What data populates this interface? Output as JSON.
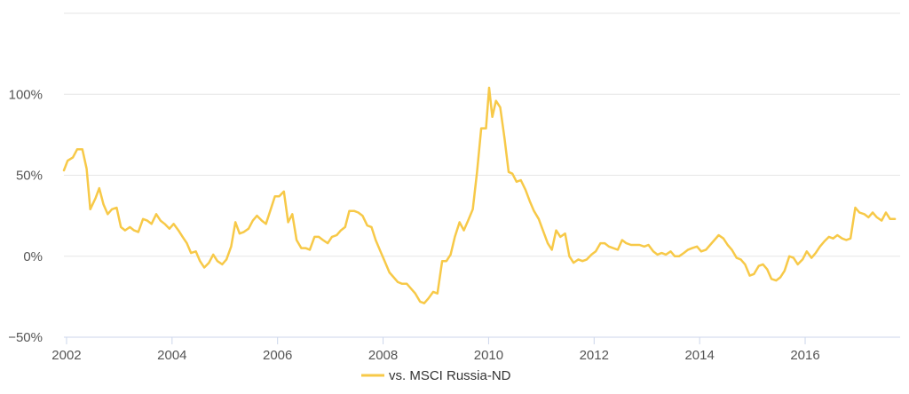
{
  "chart_data": {
    "type": "line",
    "title": "",
    "xlabel": "",
    "ylabel": "",
    "xlim": [
      2001.95,
      2017.8
    ],
    "ylim": [
      -50,
      150
    ],
    "x_ticks": [
      {
        "value": 2002,
        "label": "2002"
      },
      {
        "value": 2004,
        "label": "2004"
      },
      {
        "value": 2006,
        "label": "2006"
      },
      {
        "value": 2008,
        "label": "2008"
      },
      {
        "value": 2010,
        "label": "2010"
      },
      {
        "value": 2012,
        "label": "2012"
      },
      {
        "value": 2014,
        "label": "2014"
      },
      {
        "value": 2016,
        "label": "2016"
      }
    ],
    "y_ticks": [
      {
        "value": -50,
        "label": "−50%"
      },
      {
        "value": 0,
        "label": "0%"
      },
      {
        "value": 50,
        "label": "50%"
      },
      {
        "value": 100,
        "label": "100%"
      },
      {
        "value": 150,
        "label": ""
      }
    ],
    "grid": true,
    "legend_position": "bottom-center",
    "series": [
      {
        "name": "vs. MSCI Russia-ND",
        "color": "#f7c948",
        "points": [
          [
            2001.95,
            53
          ],
          [
            2002.02,
            59
          ],
          [
            2002.12,
            61
          ],
          [
            2002.2,
            66
          ],
          [
            2002.3,
            66
          ],
          [
            2002.38,
            54
          ],
          [
            2002.45,
            29
          ],
          [
            2002.55,
            36
          ],
          [
            2002.62,
            42
          ],
          [
            2002.7,
            32
          ],
          [
            2002.78,
            26
          ],
          [
            2002.86,
            29
          ],
          [
            2002.95,
            30
          ],
          [
            2003.03,
            18
          ],
          [
            2003.11,
            16
          ],
          [
            2003.2,
            18
          ],
          [
            2003.28,
            16
          ],
          [
            2003.36,
            15
          ],
          [
            2003.45,
            23
          ],
          [
            2003.53,
            22
          ],
          [
            2003.61,
            20
          ],
          [
            2003.7,
            26
          ],
          [
            2003.78,
            22
          ],
          [
            2003.86,
            20
          ],
          [
            2003.95,
            17
          ],
          [
            2004.03,
            20
          ],
          [
            2004.12,
            16
          ],
          [
            2004.2,
            12
          ],
          [
            2004.28,
            8
          ],
          [
            2004.36,
            2
          ],
          [
            2004.45,
            3
          ],
          [
            2004.53,
            -3
          ],
          [
            2004.61,
            -7
          ],
          [
            2004.7,
            -4
          ],
          [
            2004.78,
            1
          ],
          [
            2004.86,
            -3
          ],
          [
            2004.95,
            -5
          ],
          [
            2005.03,
            -2
          ],
          [
            2005.12,
            6
          ],
          [
            2005.2,
            21
          ],
          [
            2005.28,
            14
          ],
          [
            2005.36,
            15
          ],
          [
            2005.45,
            17
          ],
          [
            2005.53,
            22
          ],
          [
            2005.61,
            25
          ],
          [
            2005.7,
            22
          ],
          [
            2005.78,
            20
          ],
          [
            2005.86,
            28
          ],
          [
            2005.95,
            37
          ],
          [
            2006.03,
            37
          ],
          [
            2006.12,
            40
          ],
          [
            2006.2,
            21
          ],
          [
            2006.28,
            26
          ],
          [
            2006.36,
            10
          ],
          [
            2006.45,
            5
          ],
          [
            2006.53,
            5
          ],
          [
            2006.61,
            4
          ],
          [
            2006.7,
            12
          ],
          [
            2006.78,
            12
          ],
          [
            2006.86,
            10
          ],
          [
            2006.95,
            8
          ],
          [
            2007.03,
            12
          ],
          [
            2007.12,
            13
          ],
          [
            2007.2,
            16
          ],
          [
            2007.28,
            18
          ],
          [
            2007.36,
            28
          ],
          [
            2007.45,
            28
          ],
          [
            2007.53,
            27
          ],
          [
            2007.61,
            25
          ],
          [
            2007.7,
            19
          ],
          [
            2007.78,
            18
          ],
          [
            2007.86,
            10
          ],
          [
            2007.95,
            3
          ],
          [
            2008.03,
            -3
          ],
          [
            2008.12,
            -10
          ],
          [
            2008.2,
            -13
          ],
          [
            2008.28,
            -16
          ],
          [
            2008.36,
            -17
          ],
          [
            2008.45,
            -17
          ],
          [
            2008.53,
            -20
          ],
          [
            2008.61,
            -23
          ],
          [
            2008.7,
            -28
          ],
          [
            2008.78,
            -29
          ],
          [
            2008.86,
            -26
          ],
          [
            2008.95,
            -22
          ],
          [
            2009.03,
            -23
          ],
          [
            2009.12,
            -3
          ],
          [
            2009.2,
            -3
          ],
          [
            2009.28,
            1
          ],
          [
            2009.36,
            12
          ],
          [
            2009.45,
            21
          ],
          [
            2009.53,
            16
          ],
          [
            2009.61,
            22
          ],
          [
            2009.7,
            29
          ],
          [
            2009.78,
            52
          ],
          [
            2009.86,
            79
          ],
          [
            2009.95,
            79
          ],
          [
            2010.01,
            104
          ],
          [
            2010.07,
            86
          ],
          [
            2010.14,
            96
          ],
          [
            2010.22,
            92
          ],
          [
            2010.3,
            73
          ],
          [
            2010.38,
            52
          ],
          [
            2010.45,
            51
          ],
          [
            2010.53,
            46
          ],
          [
            2010.61,
            47
          ],
          [
            2010.7,
            41
          ],
          [
            2010.78,
            34
          ],
          [
            2010.86,
            28
          ],
          [
            2010.95,
            23
          ],
          [
            2011.03,
            16
          ],
          [
            2011.12,
            8
          ],
          [
            2011.2,
            4
          ],
          [
            2011.28,
            16
          ],
          [
            2011.36,
            12
          ],
          [
            2011.45,
            14
          ],
          [
            2011.53,
            0
          ],
          [
            2011.61,
            -4
          ],
          [
            2011.7,
            -2
          ],
          [
            2011.78,
            -3
          ],
          [
            2011.86,
            -2
          ],
          [
            2011.95,
            1
          ],
          [
            2012.03,
            3
          ],
          [
            2012.12,
            8
          ],
          [
            2012.2,
            8
          ],
          [
            2012.28,
            6
          ],
          [
            2012.36,
            5
          ],
          [
            2012.45,
            4
          ],
          [
            2012.53,
            10
          ],
          [
            2012.61,
            8
          ],
          [
            2012.7,
            7
          ],
          [
            2012.78,
            7
          ],
          [
            2012.86,
            7
          ],
          [
            2012.95,
            6
          ],
          [
            2013.03,
            7
          ],
          [
            2013.12,
            3
          ],
          [
            2013.2,
            1
          ],
          [
            2013.28,
            2
          ],
          [
            2013.36,
            1
          ],
          [
            2013.45,
            3
          ],
          [
            2013.53,
            0
          ],
          [
            2013.61,
            0
          ],
          [
            2013.7,
            2
          ],
          [
            2013.78,
            4
          ],
          [
            2013.86,
            5
          ],
          [
            2013.95,
            6
          ],
          [
            2014.03,
            3
          ],
          [
            2014.12,
            4
          ],
          [
            2014.2,
            7
          ],
          [
            2014.28,
            10
          ],
          [
            2014.36,
            13
          ],
          [
            2014.45,
            11
          ],
          [
            2014.53,
            7
          ],
          [
            2014.61,
            4
          ],
          [
            2014.7,
            -1
          ],
          [
            2014.78,
            -2
          ],
          [
            2014.86,
            -5
          ],
          [
            2014.95,
            -12
          ],
          [
            2015.03,
            -11
          ],
          [
            2015.12,
            -6
          ],
          [
            2015.2,
            -5
          ],
          [
            2015.28,
            -8
          ],
          [
            2015.36,
            -14
          ],
          [
            2015.45,
            -15
          ],
          [
            2015.53,
            -13
          ],
          [
            2015.61,
            -9
          ],
          [
            2015.7,
            0
          ],
          [
            2015.78,
            -1
          ],
          [
            2015.86,
            -5
          ],
          [
            2015.95,
            -2
          ],
          [
            2016.03,
            3
          ],
          [
            2016.12,
            -1
          ],
          [
            2016.2,
            2
          ],
          [
            2016.28,
            6
          ],
          [
            2016.36,
            9
          ],
          [
            2016.45,
            12
          ],
          [
            2016.53,
            11
          ],
          [
            2016.61,
            13
          ],
          [
            2016.7,
            11
          ],
          [
            2016.78,
            10
          ],
          [
            2016.86,
            11
          ],
          [
            2016.95,
            30
          ],
          [
            2017.03,
            27
          ],
          [
            2017.12,
            26
          ],
          [
            2017.2,
            24
          ],
          [
            2017.28,
            27
          ],
          [
            2017.36,
            24
          ],
          [
            2017.45,
            22
          ],
          [
            2017.53,
            27
          ],
          [
            2017.61,
            23
          ],
          [
            2017.7,
            23
          ]
        ]
      }
    ]
  }
}
